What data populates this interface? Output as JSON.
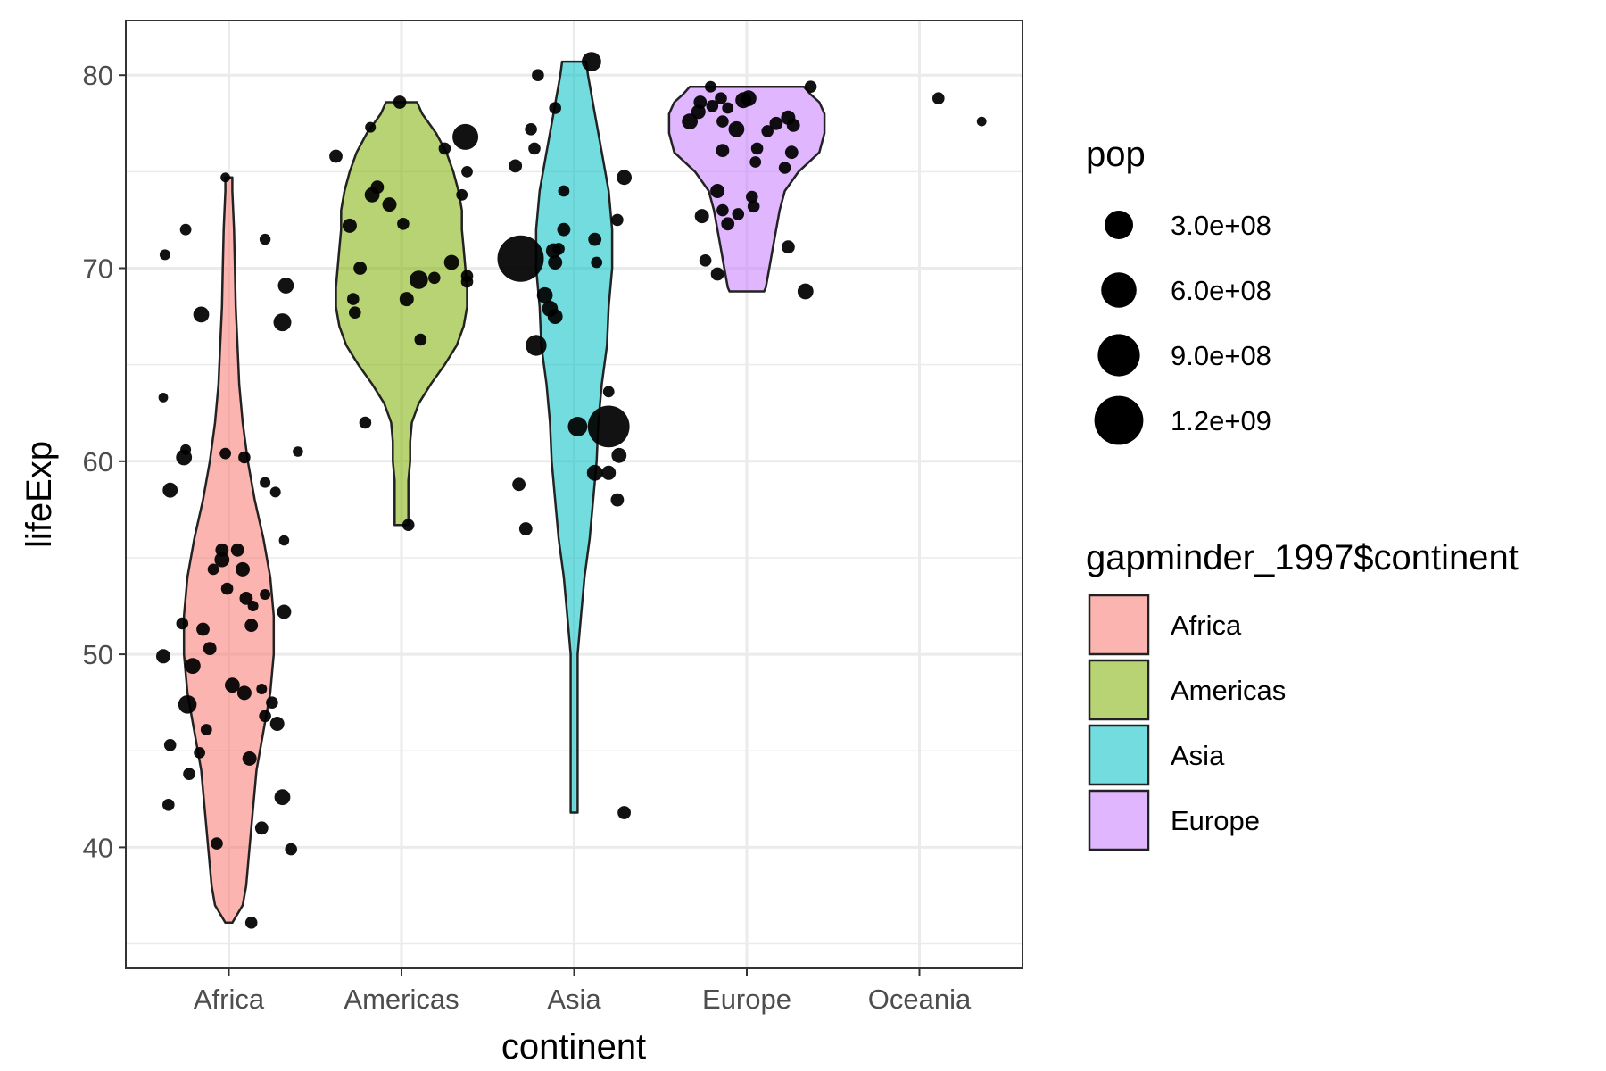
{
  "chart_data": {
    "type": "violin",
    "title": "",
    "xlabel": "continent",
    "ylabel": "lifeExp",
    "categories": [
      "Africa",
      "Americas",
      "Asia",
      "Europe",
      "Oceania"
    ],
    "ylim": [
      34,
      83
    ],
    "yticks": [
      40,
      50,
      60,
      70,
      80
    ],
    "ytick_labels": [
      "40",
      "50",
      "60",
      "70",
      "80"
    ],
    "grid": true,
    "legend_position": "right",
    "fill_legend": {
      "title": "gapminder_1997$continent",
      "entries": [
        {
          "label": "Africa",
          "color": "#F8766D"
        },
        {
          "label": "Americas",
          "color": "#7CAE00"
        },
        {
          "label": "Asia",
          "color": "#00BFC4"
        },
        {
          "label": "Europe",
          "color": "#C77CFF"
        }
      ]
    },
    "size_legend": {
      "title": "pop",
      "entries": [
        {
          "label": "3.0e+08",
          "value": 300000000
        },
        {
          "label": "6.0e+08",
          "value": 600000000
        },
        {
          "label": "9.0e+08",
          "value": 900000000
        },
        {
          "label": "1.2e+09",
          "value": 1200000000
        }
      ]
    },
    "violins": [
      {
        "category": "Africa",
        "color": "#F8766D",
        "profile": [
          [
            36.1,
            0.02
          ],
          [
            37,
            0.08
          ],
          [
            38,
            0.1
          ],
          [
            40,
            0.12
          ],
          [
            42,
            0.14
          ],
          [
            44,
            0.16
          ],
          [
            46,
            0.2
          ],
          [
            48,
            0.24
          ],
          [
            50,
            0.26
          ],
          [
            52,
            0.26
          ],
          [
            54,
            0.24
          ],
          [
            56,
            0.2
          ],
          [
            58,
            0.15
          ],
          [
            60,
            0.11
          ],
          [
            62,
            0.08
          ],
          [
            64,
            0.06
          ],
          [
            66,
            0.05
          ],
          [
            68,
            0.04
          ],
          [
            70,
            0.035
          ],
          [
            72,
            0.03
          ],
          [
            74,
            0.02
          ],
          [
            74.7,
            0.02
          ]
        ]
      },
      {
        "category": "Americas",
        "color": "#7CAE00",
        "profile": [
          [
            56.7,
            0.04
          ],
          [
            57,
            0.04
          ],
          [
            58,
            0.04
          ],
          [
            59,
            0.04
          ],
          [
            60,
            0.05
          ],
          [
            61,
            0.05
          ],
          [
            62,
            0.06
          ],
          [
            63,
            0.1
          ],
          [
            64,
            0.17
          ],
          [
            65,
            0.25
          ],
          [
            66,
            0.32
          ],
          [
            67,
            0.36
          ],
          [
            68,
            0.38
          ],
          [
            69,
            0.38
          ],
          [
            70,
            0.37
          ],
          [
            71,
            0.36
          ],
          [
            72,
            0.35
          ],
          [
            73,
            0.35
          ],
          [
            74,
            0.33
          ],
          [
            75,
            0.3
          ],
          [
            76,
            0.26
          ],
          [
            77,
            0.2
          ],
          [
            78,
            0.12
          ],
          [
            78.6,
            0.09
          ]
        ]
      },
      {
        "category": "Asia",
        "color": "#00BFC4",
        "profile": [
          [
            41.8,
            0.02
          ],
          [
            42,
            0.02
          ],
          [
            45,
            0.02
          ],
          [
            48,
            0.02
          ],
          [
            50,
            0.02
          ],
          [
            52,
            0.04
          ],
          [
            54,
            0.06
          ],
          [
            56,
            0.09
          ],
          [
            58,
            0.11
          ],
          [
            60,
            0.13
          ],
          [
            62,
            0.14
          ],
          [
            64,
            0.16
          ],
          [
            66,
            0.19
          ],
          [
            68,
            0.2
          ],
          [
            70,
            0.22
          ],
          [
            72,
            0.22
          ],
          [
            74,
            0.2
          ],
          [
            76,
            0.16
          ],
          [
            78,
            0.12
          ],
          [
            80,
            0.08
          ],
          [
            80.7,
            0.07
          ]
        ]
      },
      {
        "category": "Europe",
        "color": "#C77CFF",
        "profile": [
          [
            68.8,
            0.1
          ],
          [
            69,
            0.11
          ],
          [
            70,
            0.13
          ],
          [
            71,
            0.15
          ],
          [
            72,
            0.17
          ],
          [
            73,
            0.19
          ],
          [
            74,
            0.22
          ],
          [
            75,
            0.3
          ],
          [
            76,
            0.42
          ],
          [
            77,
            0.45
          ],
          [
            78,
            0.45
          ],
          [
            78.6,
            0.42
          ],
          [
            79,
            0.37
          ],
          [
            79.4,
            0.33
          ]
        ]
      }
    ],
    "points": [
      {
        "x": "Africa",
        "dx": -0.37,
        "y": 70.7,
        "pop": 10
      },
      {
        "x": "Africa",
        "dx": -0.25,
        "y": 72.0,
        "pop": 15
      },
      {
        "x": "Africa",
        "dx": -0.16,
        "y": 67.6,
        "pop": 60
      },
      {
        "x": "Africa",
        "dx": -0.02,
        "y": 74.7,
        "pop": 5
      },
      {
        "x": "Africa",
        "dx": 0.21,
        "y": 71.5,
        "pop": 12
      },
      {
        "x": "Africa",
        "dx": 0.33,
        "y": 69.1,
        "pop": 60
      },
      {
        "x": "Africa",
        "dx": 0.31,
        "y": 67.2,
        "pop": 90
      },
      {
        "x": "Africa",
        "dx": -0.38,
        "y": 63.3,
        "pop": 5
      },
      {
        "x": "Africa",
        "dx": -0.25,
        "y": 60.6,
        "pop": 10
      },
      {
        "x": "Africa",
        "dx": -0.26,
        "y": 60.2,
        "pop": 60
      },
      {
        "x": "Africa",
        "dx": -0.34,
        "y": 58.5,
        "pop": 50
      },
      {
        "x": "Africa",
        "dx": -0.02,
        "y": 60.4,
        "pop": 15
      },
      {
        "x": "Africa",
        "dx": 0.09,
        "y": 60.2,
        "pop": 20
      },
      {
        "x": "Africa",
        "dx": 0.21,
        "y": 58.9,
        "pop": 10
      },
      {
        "x": "Africa",
        "dx": 0.27,
        "y": 58.4,
        "pop": 10
      },
      {
        "x": "Africa",
        "dx": 0.4,
        "y": 60.5,
        "pop": 8
      },
      {
        "x": "Africa",
        "dx": 0.32,
        "y": 55.9,
        "pop": 8
      },
      {
        "x": "Africa",
        "dx": -0.04,
        "y": 55.4,
        "pop": 30
      },
      {
        "x": "Africa",
        "dx": 0.05,
        "y": 55.4,
        "pop": 30
      },
      {
        "x": "Africa",
        "dx": -0.04,
        "y": 54.9,
        "pop": 50
      },
      {
        "x": "Africa",
        "dx": -0.09,
        "y": 54.4,
        "pop": 15
      },
      {
        "x": "Africa",
        "dx": 0.08,
        "y": 54.4,
        "pop": 40
      },
      {
        "x": "Africa",
        "dx": -0.01,
        "y": 53.4,
        "pop": 20
      },
      {
        "x": "Africa",
        "dx": 0.1,
        "y": 52.9,
        "pop": 30
      },
      {
        "x": "Africa",
        "dx": 0.21,
        "y": 53.1,
        "pop": 10
      },
      {
        "x": "Africa",
        "dx": 0.14,
        "y": 52.5,
        "pop": 10
      },
      {
        "x": "Africa",
        "dx": 0.32,
        "y": 52.2,
        "pop": 40
      },
      {
        "x": "Africa",
        "dx": -0.27,
        "y": 51.6,
        "pop": 20
      },
      {
        "x": "Africa",
        "dx": -0.15,
        "y": 51.3,
        "pop": 30
      },
      {
        "x": "Africa",
        "dx": 0.13,
        "y": 51.5,
        "pop": 30
      },
      {
        "x": "Africa",
        "dx": -0.38,
        "y": 49.9,
        "pop": 40
      },
      {
        "x": "Africa",
        "dx": -0.21,
        "y": 49.4,
        "pop": 60
      },
      {
        "x": "Africa",
        "dx": -0.11,
        "y": 50.3,
        "pop": 30
      },
      {
        "x": "Africa",
        "dx": -0.24,
        "y": 47.4,
        "pop": 100
      },
      {
        "x": "Africa",
        "dx": 0.02,
        "y": 48.4,
        "pop": 50
      },
      {
        "x": "Africa",
        "dx": 0.09,
        "y": 48.0,
        "pop": 40
      },
      {
        "x": "Africa",
        "dx": 0.19,
        "y": 48.2,
        "pop": 10
      },
      {
        "x": "Africa",
        "dx": 0.25,
        "y": 47.5,
        "pop": 20
      },
      {
        "x": "Africa",
        "dx": 0.21,
        "y": 46.8,
        "pop": 20
      },
      {
        "x": "Africa",
        "dx": 0.28,
        "y": 46.4,
        "pop": 40
      },
      {
        "x": "Africa",
        "dx": -0.13,
        "y": 46.1,
        "pop": 15
      },
      {
        "x": "Africa",
        "dx": -0.34,
        "y": 45.3,
        "pop": 20
      },
      {
        "x": "Africa",
        "dx": -0.17,
        "y": 44.9,
        "pop": 15
      },
      {
        "x": "Africa",
        "dx": 0.12,
        "y": 44.6,
        "pop": 40
      },
      {
        "x": "Africa",
        "dx": -0.23,
        "y": 43.8,
        "pop": 20
      },
      {
        "x": "Africa",
        "dx": -0.35,
        "y": 42.2,
        "pop": 20
      },
      {
        "x": "Africa",
        "dx": 0.31,
        "y": 42.6,
        "pop": 60
      },
      {
        "x": "Africa",
        "dx": 0.19,
        "y": 41.0,
        "pop": 30
      },
      {
        "x": "Africa",
        "dx": -0.07,
        "y": 40.2,
        "pop": 20
      },
      {
        "x": "Africa",
        "dx": 0.36,
        "y": 39.9,
        "pop": 20
      },
      {
        "x": "Africa",
        "dx": 0.13,
        "y": 36.1,
        "pop": 20
      },
      {
        "x": "Americas",
        "dx": -0.38,
        "y": 75.8,
        "pop": 30
      },
      {
        "x": "Americas",
        "dx": -0.18,
        "y": 77.3,
        "pop": 10
      },
      {
        "x": "Americas",
        "dx": -0.01,
        "y": 78.6,
        "pop": 30
      },
      {
        "x": "Americas",
        "dx": 0.25,
        "y": 76.2,
        "pop": 20
      },
      {
        "x": "Americas",
        "dx": 0.37,
        "y": 76.8,
        "pop": 280
      },
      {
        "x": "Americas",
        "dx": 0.38,
        "y": 75.0,
        "pop": 15
      },
      {
        "x": "Americas",
        "dx": 0.35,
        "y": 73.8,
        "pop": 15
      },
      {
        "x": "Americas",
        "dx": -0.3,
        "y": 72.2,
        "pop": 40
      },
      {
        "x": "Americas",
        "dx": -0.17,
        "y": 73.8,
        "pop": 50
      },
      {
        "x": "Americas",
        "dx": -0.14,
        "y": 74.2,
        "pop": 30
      },
      {
        "x": "Americas",
        "dx": -0.07,
        "y": 73.3,
        "pop": 40
      },
      {
        "x": "Americas",
        "dx": 0.01,
        "y": 72.3,
        "pop": 20
      },
      {
        "x": "Americas",
        "dx": -0.24,
        "y": 70.0,
        "pop": 30
      },
      {
        "x": "Americas",
        "dx": -0.28,
        "y": 68.4,
        "pop": 20
      },
      {
        "x": "Americas",
        "dx": -0.27,
        "y": 67.7,
        "pop": 20
      },
      {
        "x": "Americas",
        "dx": 0.03,
        "y": 68.4,
        "pop": 40
      },
      {
        "x": "Americas",
        "dx": 0.1,
        "y": 69.4,
        "pop": 100
      },
      {
        "x": "Americas",
        "dx": 0.19,
        "y": 69.5,
        "pop": 20
      },
      {
        "x": "Americas",
        "dx": 0.29,
        "y": 70.3,
        "pop": 50
      },
      {
        "x": "Americas",
        "dx": 0.38,
        "y": 69.6,
        "pop": 20
      },
      {
        "x": "Americas",
        "dx": 0.38,
        "y": 69.3,
        "pop": 20
      },
      {
        "x": "Americas",
        "dx": 0.11,
        "y": 66.3,
        "pop": 20
      },
      {
        "x": "Americas",
        "dx": -0.21,
        "y": 62.0,
        "pop": 20
      },
      {
        "x": "Americas",
        "dx": 0.04,
        "y": 56.7,
        "pop": 20
      },
      {
        "x": "Asia",
        "dx": 0.1,
        "y": 80.7,
        "pop": 120
      },
      {
        "x": "Asia",
        "dx": -0.21,
        "y": 80.0,
        "pop": 20
      },
      {
        "x": "Asia",
        "dx": -0.11,
        "y": 78.3,
        "pop": 20
      },
      {
        "x": "Asia",
        "dx": -0.25,
        "y": 77.2,
        "pop": 20
      },
      {
        "x": "Asia",
        "dx": -0.23,
        "y": 76.2,
        "pop": 20
      },
      {
        "x": "Asia",
        "dx": -0.34,
        "y": 75.3,
        "pop": 30
      },
      {
        "x": "Asia",
        "dx": 0.29,
        "y": 74.7,
        "pop": 50
      },
      {
        "x": "Asia",
        "dx": -0.06,
        "y": 74.0,
        "pop": 15
      },
      {
        "x": "Asia",
        "dx": 0.25,
        "y": 72.5,
        "pop": 20
      },
      {
        "x": "Asia",
        "dx": -0.06,
        "y": 72.0,
        "pop": 30
      },
      {
        "x": "Asia",
        "dx": -0.09,
        "y": 71.0,
        "pop": 20
      },
      {
        "x": "Asia",
        "dx": 0.12,
        "y": 71.5,
        "pop": 30
      },
      {
        "x": "Asia",
        "dx": -0.31,
        "y": 70.5,
        "pop": 1230
      },
      {
        "x": "Asia",
        "dx": -0.12,
        "y": 70.9,
        "pop": 50
      },
      {
        "x": "Asia",
        "dx": -0.11,
        "y": 70.3,
        "pop": 40
      },
      {
        "x": "Asia",
        "dx": 0.13,
        "y": 70.3,
        "pop": 15
      },
      {
        "x": "Asia",
        "dx": -0.17,
        "y": 68.6,
        "pop": 60
      },
      {
        "x": "Asia",
        "dx": -0.14,
        "y": 67.9,
        "pop": 60
      },
      {
        "x": "Asia",
        "dx": -0.11,
        "y": 67.5,
        "pop": 50
      },
      {
        "x": "Asia",
        "dx": -0.22,
        "y": 66.0,
        "pop": 150
      },
      {
        "x": "Asia",
        "dx": 0.2,
        "y": 63.6,
        "pop": 15
      },
      {
        "x": "Asia",
        "dx": 0.02,
        "y": 61.8,
        "pop": 120
      },
      {
        "x": "Asia",
        "dx": 0.2,
        "y": 61.8,
        "pop": 960
      },
      {
        "x": "Asia",
        "dx": 0.26,
        "y": 60.3,
        "pop": 50
      },
      {
        "x": "Asia",
        "dx": 0.12,
        "y": 59.4,
        "pop": 60
      },
      {
        "x": "Asia",
        "dx": 0.2,
        "y": 59.4,
        "pop": 40
      },
      {
        "x": "Asia",
        "dx": 0.25,
        "y": 58.0,
        "pop": 30
      },
      {
        "x": "Asia",
        "dx": -0.32,
        "y": 58.8,
        "pop": 30
      },
      {
        "x": "Asia",
        "dx": -0.28,
        "y": 56.5,
        "pop": 30
      },
      {
        "x": "Asia",
        "dx": 0.29,
        "y": 41.8,
        "pop": 30
      },
      {
        "x": "Europe",
        "dx": -0.28,
        "y": 78.1,
        "pop": 40
      },
      {
        "x": "Europe",
        "dx": -0.33,
        "y": 77.6,
        "pop": 60
      },
      {
        "x": "Europe",
        "dx": -0.27,
        "y": 78.6,
        "pop": 30
      },
      {
        "x": "Europe",
        "dx": -0.21,
        "y": 79.4,
        "pop": 15
      },
      {
        "x": "Europe",
        "dx": -0.2,
        "y": 78.4,
        "pop": 20
      },
      {
        "x": "Europe",
        "dx": -0.15,
        "y": 78.8,
        "pop": 20
      },
      {
        "x": "Europe",
        "dx": -0.14,
        "y": 77.6,
        "pop": 20
      },
      {
        "x": "Europe",
        "dx": -0.14,
        "y": 76.1,
        "pop": 30
      },
      {
        "x": "Europe",
        "dx": -0.11,
        "y": 78.3,
        "pop": 15
      },
      {
        "x": "Europe",
        "dx": -0.06,
        "y": 77.2,
        "pop": 60
      },
      {
        "x": "Europe",
        "dx": -0.02,
        "y": 78.7,
        "pop": 60
      },
      {
        "x": "Europe",
        "dx": 0.01,
        "y": 78.8,
        "pop": 60
      },
      {
        "x": "Europe",
        "dx": 0.06,
        "y": 76.2,
        "pop": 20
      },
      {
        "x": "Europe",
        "dx": 0.05,
        "y": 75.5,
        "pop": 15
      },
      {
        "x": "Europe",
        "dx": 0.12,
        "y": 77.1,
        "pop": 20
      },
      {
        "x": "Europe",
        "dx": 0.17,
        "y": 77.5,
        "pop": 30
      },
      {
        "x": "Europe",
        "dx": 0.24,
        "y": 77.8,
        "pop": 40
      },
      {
        "x": "Europe",
        "dx": 0.27,
        "y": 77.4,
        "pop": 30
      },
      {
        "x": "Europe",
        "dx": 0.26,
        "y": 76.0,
        "pop": 30
      },
      {
        "x": "Europe",
        "dx": 0.22,
        "y": 75.2,
        "pop": 20
      },
      {
        "x": "Europe",
        "dx": 0.37,
        "y": 79.4,
        "pop": 20
      },
      {
        "x": "Europe",
        "dx": -0.17,
        "y": 74.0,
        "pop": 40
      },
      {
        "x": "Europe",
        "dx": 0.03,
        "y": 73.7,
        "pop": 20
      },
      {
        "x": "Europe",
        "dx": 0.04,
        "y": 73.2,
        "pop": 20
      },
      {
        "x": "Europe",
        "dx": -0.14,
        "y": 73.0,
        "pop": 20
      },
      {
        "x": "Europe",
        "dx": -0.05,
        "y": 72.8,
        "pop": 20
      },
      {
        "x": "Europe",
        "dx": -0.26,
        "y": 72.7,
        "pop": 40
      },
      {
        "x": "Europe",
        "dx": -0.11,
        "y": 72.3,
        "pop": 30
      },
      {
        "x": "Europe",
        "dx": 0.24,
        "y": 71.1,
        "pop": 30
      },
      {
        "x": "Europe",
        "dx": -0.24,
        "y": 70.4,
        "pop": 20
      },
      {
        "x": "Europe",
        "dx": -0.17,
        "y": 69.7,
        "pop": 30
      },
      {
        "x": "Europe",
        "dx": 0.34,
        "y": 68.8,
        "pop": 60
      },
      {
        "x": "Oceania",
        "dx": 0.11,
        "y": 78.8,
        "pop": 20
      },
      {
        "x": "Oceania",
        "dx": 0.36,
        "y": 77.6,
        "pop": 5
      }
    ]
  }
}
